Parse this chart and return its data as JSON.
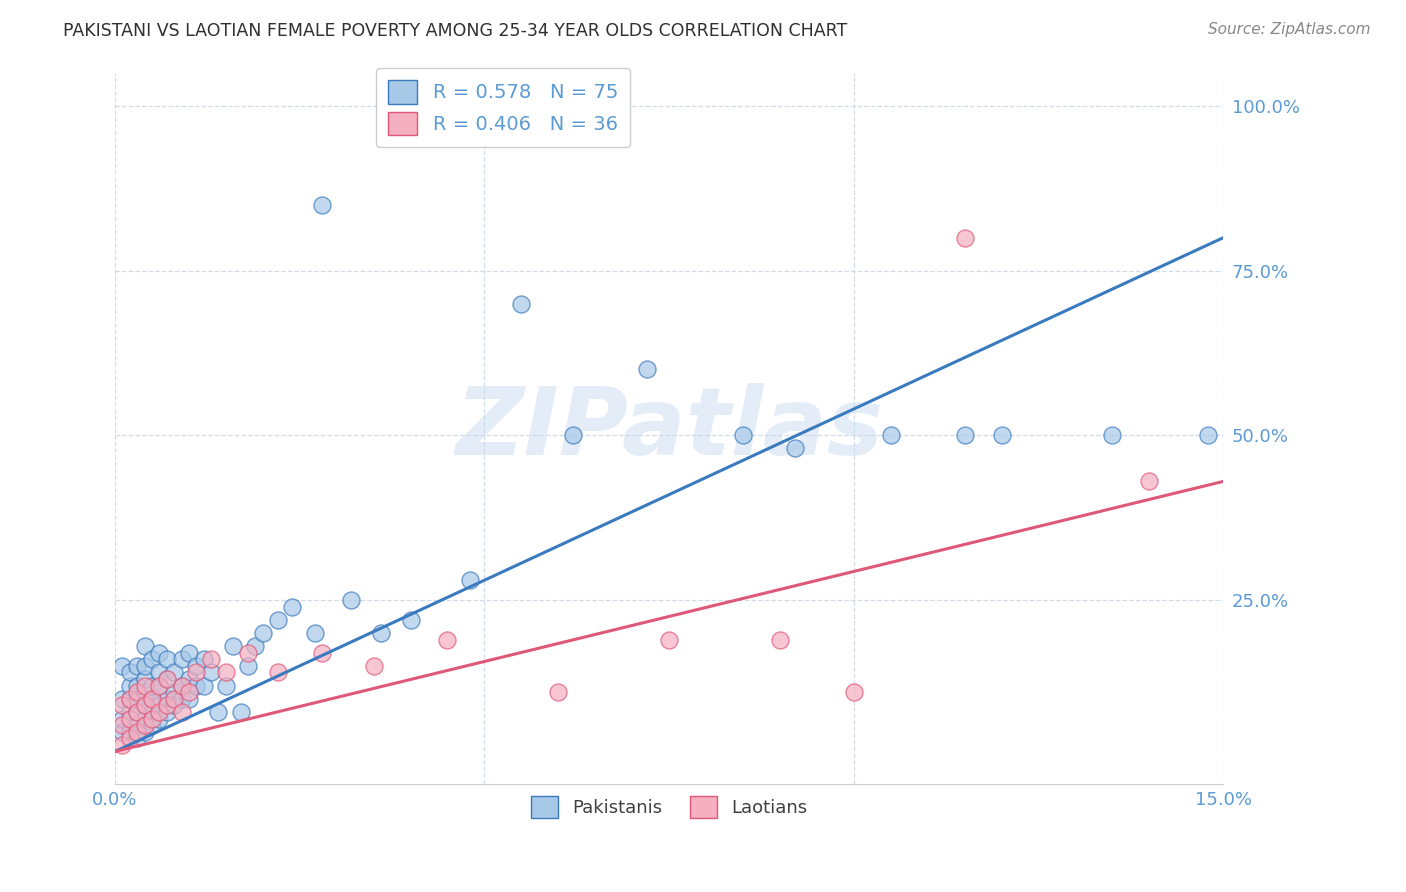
{
  "title": "PAKISTANI VS LAOTIAN FEMALE POVERTY AMONG 25-34 YEAR OLDS CORRELATION CHART",
  "source": "Source: ZipAtlas.com",
  "xlim": [
    0.0,
    0.15
  ],
  "ylim": [
    -0.03,
    1.05
  ],
  "pakistanis_R": 0.578,
  "pakistanis_N": 75,
  "laotians_R": 0.406,
  "laotians_N": 36,
  "pakistani_color": "#a8c8e8",
  "laotian_color": "#f4afc0",
  "pakistani_line_color": "#3a7abf",
  "laotian_line_color": "#e05878",
  "title_color": "#303030",
  "axis_label_color": "#5b9bd5",
  "grid_color": "#d0dde8",
  "watermark": "ZIPatlas",
  "background_color": "#ffffff",
  "pk_line_x0": 0.0,
  "pk_line_y0": 0.02,
  "pk_line_x1": 0.15,
  "pk_line_y1": 0.8,
  "la_line_x0": 0.0,
  "la_line_y0": 0.02,
  "la_line_x1": 0.15,
  "la_line_y1": 0.43,
  "pk_x": [
    0.001,
    0.001,
    0.001,
    0.001,
    0.002,
    0.002,
    0.002,
    0.002,
    0.002,
    0.003,
    0.003,
    0.003,
    0.003,
    0.003,
    0.003,
    0.004,
    0.004,
    0.004,
    0.004,
    0.004,
    0.004,
    0.004,
    0.005,
    0.005,
    0.005,
    0.005,
    0.005,
    0.006,
    0.006,
    0.006,
    0.006,
    0.006,
    0.007,
    0.007,
    0.007,
    0.007,
    0.008,
    0.008,
    0.008,
    0.009,
    0.009,
    0.009,
    0.01,
    0.01,
    0.01,
    0.011,
    0.011,
    0.012,
    0.012,
    0.013,
    0.014,
    0.015,
    0.016,
    0.017,
    0.018,
    0.019,
    0.02,
    0.022,
    0.024,
    0.027,
    0.028,
    0.032,
    0.036,
    0.04,
    0.048,
    0.055,
    0.062,
    0.072,
    0.085,
    0.092,
    0.105,
    0.115,
    0.12,
    0.135,
    0.148
  ],
  "pk_y": [
    0.05,
    0.07,
    0.1,
    0.15,
    0.05,
    0.08,
    0.1,
    0.12,
    0.14,
    0.04,
    0.06,
    0.08,
    0.1,
    0.12,
    0.15,
    0.05,
    0.07,
    0.09,
    0.11,
    0.13,
    0.15,
    0.18,
    0.06,
    0.08,
    0.1,
    0.12,
    0.16,
    0.07,
    0.09,
    0.12,
    0.14,
    0.17,
    0.08,
    0.1,
    0.13,
    0.16,
    0.09,
    0.11,
    0.14,
    0.1,
    0.12,
    0.16,
    0.1,
    0.13,
    0.17,
    0.12,
    0.15,
    0.12,
    0.16,
    0.14,
    0.08,
    0.12,
    0.18,
    0.08,
    0.15,
    0.18,
    0.2,
    0.22,
    0.24,
    0.2,
    0.85,
    0.25,
    0.2,
    0.22,
    0.28,
    0.7,
    0.5,
    0.6,
    0.5,
    0.48,
    0.5,
    0.5,
    0.5,
    0.5,
    0.5
  ],
  "la_x": [
    0.001,
    0.001,
    0.001,
    0.002,
    0.002,
    0.002,
    0.003,
    0.003,
    0.003,
    0.004,
    0.004,
    0.004,
    0.005,
    0.005,
    0.006,
    0.006,
    0.007,
    0.007,
    0.008,
    0.009,
    0.009,
    0.01,
    0.011,
    0.013,
    0.015,
    0.018,
    0.022,
    0.028,
    0.035,
    0.045,
    0.06,
    0.075,
    0.09,
    0.1,
    0.115,
    0.14
  ],
  "la_y": [
    0.03,
    0.06,
    0.09,
    0.04,
    0.07,
    0.1,
    0.05,
    0.08,
    0.11,
    0.06,
    0.09,
    0.12,
    0.07,
    0.1,
    0.08,
    0.12,
    0.09,
    0.13,
    0.1,
    0.08,
    0.12,
    0.11,
    0.14,
    0.16,
    0.14,
    0.17,
    0.14,
    0.17,
    0.15,
    0.19,
    0.11,
    0.19,
    0.19,
    0.11,
    0.8,
    0.43
  ]
}
